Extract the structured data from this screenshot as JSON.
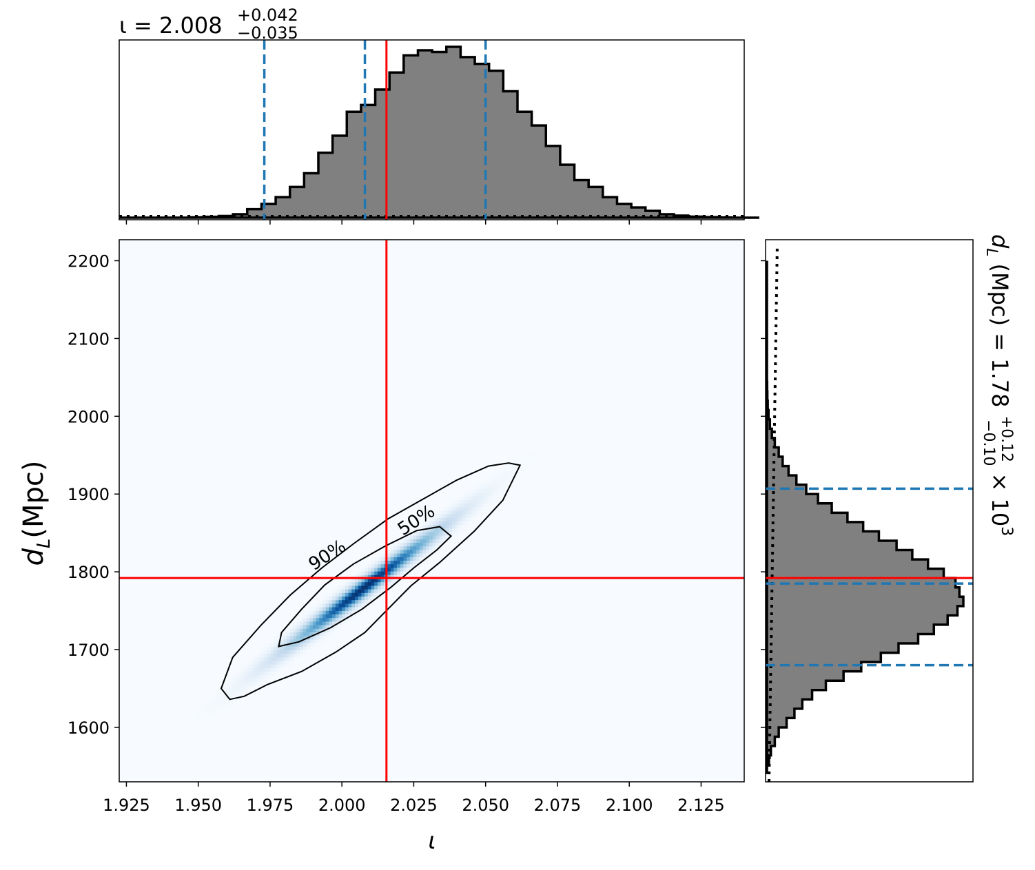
{
  "chart_data": {
    "type": "corner",
    "colors": {
      "hist_fill": "#808080",
      "hist_edge": "#000000",
      "quantile": "#1f77b4",
      "truth": "#ff0000",
      "density": "Blues"
    },
    "top_hist": {
      "title": {
        "base": "ι = 2.008",
        "sup": "+0.042",
        "sub": "−0.035"
      },
      "xlim": [
        1.9225,
        2.14
      ],
      "bin_edges_start": 1.9225,
      "bin_width": 0.00495,
      "counts": [
        0,
        0,
        0,
        0,
        0,
        0.002,
        0.005,
        0.01,
        0.02,
        0.05,
        0.08,
        0.12,
        0.18,
        0.26,
        0.38,
        0.48,
        0.62,
        0.66,
        0.75,
        0.85,
        0.95,
        0.98,
        0.97,
        1.0,
        0.94,
        0.9,
        0.86,
        0.74,
        0.62,
        0.54,
        0.42,
        0.31,
        0.22,
        0.18,
        0.12,
        0.08,
        0.06,
        0.04,
        0.02,
        0.012,
        0.006,
        0.003,
        0.001,
        0,
        0
      ],
      "quantiles": [
        1.973,
        2.008,
        2.05
      ],
      "truth": 2.0155
    },
    "joint": {
      "xlabel": "ι",
      "ylabel": "d",
      "ylabel_sub": "L",
      "ylabel_unit": "(Mpc)",
      "xlim": [
        1.9225,
        2.14
      ],
      "ylim": [
        1530,
        2227
      ],
      "xticks": [
        "1.925",
        "1.950",
        "1.975",
        "2.000",
        "2.025",
        "2.050",
        "2.075",
        "2.100",
        "2.125"
      ],
      "yticks": [
        "1600",
        "1700",
        "1800",
        "1900",
        "2000",
        "2100",
        "2200"
      ],
      "density": {
        "mean": [
          2.008,
          1780
        ],
        "sd_x": 0.018,
        "sd_y": 52,
        "corr": 0.985
      },
      "contour_labels": [
        "90%",
        "50%"
      ],
      "truth": {
        "x": 2.0155,
        "y": 1792
      }
    },
    "right_hist": {
      "label": {
        "base": "d",
        "sub": "L",
        "unit": "(Mpc) = 1.78",
        "sup": "+0.12",
        "sub2": "−0.10",
        "suffix": "× 10",
        "exp": "3"
      },
      "ylim": [
        1530,
        2227
      ],
      "bin_edges_start": 1540,
      "bin_width": 12,
      "counts": [
        0,
        0.01,
        0.02,
        0.04,
        0.06,
        0.1,
        0.14,
        0.18,
        0.23,
        0.3,
        0.39,
        0.48,
        0.58,
        0.67,
        0.77,
        0.85,
        0.92,
        0.97,
        1.0,
        0.98,
        0.96,
        0.9,
        0.82,
        0.74,
        0.66,
        0.57,
        0.49,
        0.41,
        0.33,
        0.26,
        0.2,
        0.15,
        0.11,
        0.08,
        0.06,
        0.04,
        0.025,
        0.015,
        0.008,
        0.004,
        0.002,
        0.001,
        0,
        0,
        0,
        0,
        0,
        0,
        0,
        0,
        0,
        0,
        0,
        0,
        0
      ],
      "quantiles": [
        1680,
        1785,
        1907
      ],
      "truth": 1792
    }
  }
}
